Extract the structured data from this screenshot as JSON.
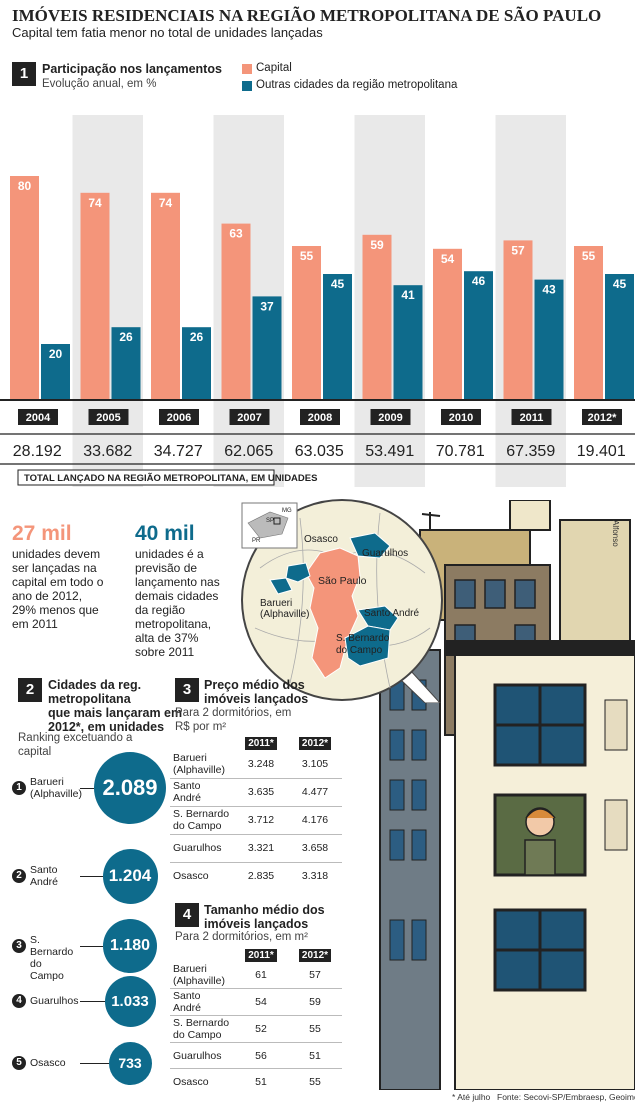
{
  "header": {
    "title": "IMÓVEIS RESIDENCIAIS NA REGIÃO METROPOLITANA DE SÃO PAULO",
    "subtitle": "Capital tem fatia menor no total de unidades lançadas"
  },
  "colors": {
    "capital": "#f4957a",
    "outras": "#0e6b8c",
    "shade": "#e9e9e9",
    "dark": "#222222"
  },
  "section1": {
    "number": "1",
    "title": "Participação nos lançamentos",
    "subtitle": "Evolução anual, em %",
    "legend_capital": "Capital",
    "legend_outras": "Outras cidades da região metropolitana",
    "total_label": "TOTAL LANÇADO NA REGIÃO METROPOLITANA, EM UNIDADES"
  },
  "chart_data": {
    "type": "bar",
    "categories": [
      "2004",
      "2005",
      "2006",
      "2007",
      "2008",
      "2009",
      "2010",
      "2011",
      "2012*"
    ],
    "series": [
      {
        "name": "Capital",
        "values": [
          80,
          74,
          74,
          63,
          55,
          59,
          54,
          57,
          55
        ]
      },
      {
        "name": "Outras cidades da região metropolitana",
        "values": [
          20,
          26,
          26,
          37,
          45,
          41,
          46,
          43,
          45
        ]
      }
    ],
    "totals": [
      "28.192",
      "33.682",
      "34.727",
      "62.065",
      "63.035",
      "53.491",
      "70.781",
      "67.359",
      "19.401"
    ],
    "ylim": [
      0,
      100
    ]
  },
  "stats": {
    "capital_big": "27 mil",
    "capital_text": [
      "unidades devem",
      "ser lançadas na",
      "capital em todo o",
      "ano de 2012,",
      "29% menos que",
      "em 2011"
    ],
    "outras_big": "40 mil",
    "outras_text": [
      "unidades é a",
      "previsão de",
      "lançamento nas",
      "demais cidades",
      "da região",
      "metropolitana,",
      "alta de 37%",
      "sobre 2011"
    ]
  },
  "map": {
    "labels": {
      "osasco": "Osasco",
      "guarulhos": "Guarulhos",
      "sao_paulo": "São Paulo",
      "barueri_1": "Barueri",
      "barueri_2": "(Alphaville)",
      "santo_andre": "Santo André",
      "sbc_1": "S. Bernardo",
      "sbc_2": "do Campo",
      "inset_mg": "MG",
      "inset_sp": "SP",
      "inset_pr": "PR"
    }
  },
  "section2": {
    "number": "2",
    "title_lines": [
      "Cidades da reg.",
      "metropolitana",
      "que mais lançaram em",
      "2012*, em unidades"
    ],
    "subtitle_lines": [
      "Ranking excetuando a",
      "capital"
    ],
    "ranking": [
      {
        "rank": "1",
        "name_lines": [
          "Barueri",
          "(Alphaville)"
        ],
        "value": "2.089",
        "num": 2089
      },
      {
        "rank": "2",
        "name_lines": [
          "Santo",
          "André"
        ],
        "value": "1.204",
        "num": 1204
      },
      {
        "rank": "3",
        "name_lines": [
          "S. Bernardo",
          "do Campo"
        ],
        "value": "1.180",
        "num": 1180
      },
      {
        "rank": "4",
        "name_lines": [
          "Guarulhos"
        ],
        "value": "1.033",
        "num": 1033
      },
      {
        "rank": "5",
        "name_lines": [
          "Osasco"
        ],
        "value": "733",
        "num": 733
      }
    ]
  },
  "section3": {
    "number": "3",
    "title_lines": [
      "Preço médio dos",
      "imóveis lançados"
    ],
    "subtitle_lines": [
      "Para 2 dormitórios, em",
      "R$ por m²"
    ],
    "col1": "2011*",
    "col2": "2012*",
    "rows": [
      {
        "name_lines": [
          "Barueri",
          "(Alphaville)"
        ],
        "v1": "3.248",
        "v2": "3.105"
      },
      {
        "name_lines": [
          "Santo",
          "André"
        ],
        "v1": "3.635",
        "v2": "4.477"
      },
      {
        "name_lines": [
          "S. Bernardo",
          "do Campo"
        ],
        "v1": "3.712",
        "v2": "4.176"
      },
      {
        "name_lines": [
          "Guarulhos"
        ],
        "v1": "3.321",
        "v2": "3.658"
      },
      {
        "name_lines": [
          "Osasco"
        ],
        "v1": "2.835",
        "v2": "3.318"
      }
    ]
  },
  "section4": {
    "number": "4",
    "title_lines": [
      "Tamanho médio dos",
      "imóveis lançados"
    ],
    "subtitle": "Para 2 dormitórios, em m²",
    "col1": "2011*",
    "col2": "2012*",
    "rows": [
      {
        "name_lines": [
          "Barueri",
          "(Alphaville)"
        ],
        "v1": "61",
        "v2": "57"
      },
      {
        "name_lines": [
          "Santo",
          "André"
        ],
        "v1": "54",
        "v2": "59"
      },
      {
        "name_lines": [
          "S. Bernardo",
          "do Campo"
        ],
        "v1": "52",
        "v2": "55"
      },
      {
        "name_lines": [
          "Guarulhos"
        ],
        "v1": "56",
        "v2": "51"
      },
      {
        "name_lines": [
          "Osasco"
        ],
        "v1": "51",
        "v2": "55"
      }
    ]
  },
  "footer": {
    "note": "* Até julho",
    "source": "Fonte: Secovi-SP/Embraesp, Geoimovel",
    "artist": "Alfonso"
  }
}
